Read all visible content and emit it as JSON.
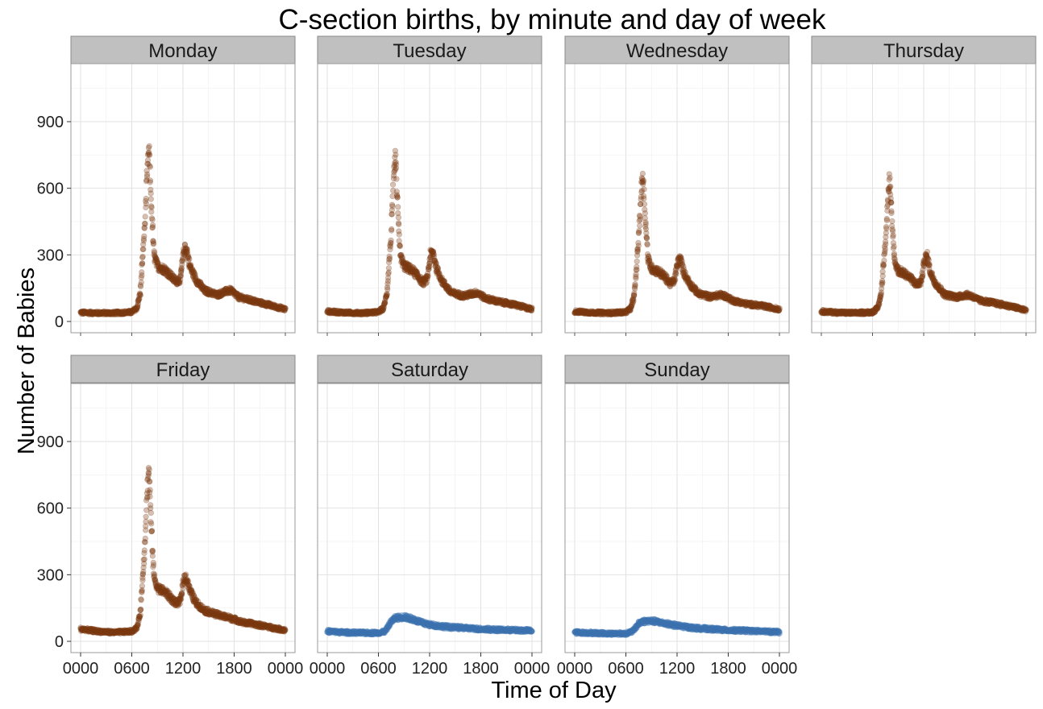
{
  "chart_data": {
    "type": "scatter",
    "title": "C-section births, by minute and day of week",
    "xlabel": "Time of Day",
    "ylabel": "Number of Babies",
    "x_ticks": [
      "0000",
      "0600",
      "1200",
      "1800",
      "0000"
    ],
    "x_tick_hours": [
      0,
      6,
      12,
      18,
      24
    ],
    "y_ticks": [
      0,
      300,
      600,
      900
    ],
    "xlim_hours": [
      0,
      24
    ],
    "ylim": [
      0,
      1200
    ],
    "grid": true,
    "colors": {
      "weekday": "#7B3A12",
      "weekend": "#3D74B0"
    },
    "panels": [
      {
        "name": "Monday",
        "color_group": "weekday",
        "curve": [
          [
            0,
            40
          ],
          [
            2,
            38
          ],
          [
            4,
            38
          ],
          [
            6,
            42
          ],
          [
            6.6,
            60
          ],
          [
            7,
            130
          ],
          [
            7.5,
            420
          ],
          [
            7.8,
            660
          ],
          [
            8.0,
            780
          ],
          [
            8.3,
            520
          ],
          [
            8.6,
            300
          ],
          [
            9,
            250
          ],
          [
            10,
            230
          ],
          [
            10.7,
            200
          ],
          [
            11.2,
            180
          ],
          [
            11.7,
            190
          ],
          [
            12.1,
            320
          ],
          [
            12.4,
            330
          ],
          [
            12.8,
            250
          ],
          [
            13.5,
            190
          ],
          [
            14.5,
            140
          ],
          [
            16,
            120
          ],
          [
            17,
            135
          ],
          [
            17.6,
            140
          ],
          [
            18.5,
            110
          ],
          [
            20,
            95
          ],
          [
            22,
            75
          ],
          [
            24,
            55
          ]
        ]
      },
      {
        "name": "Tuesday",
        "color_group": "weekday",
        "curve": [
          [
            0,
            45
          ],
          [
            2,
            40
          ],
          [
            4,
            38
          ],
          [
            6,
            42
          ],
          [
            6.6,
            60
          ],
          [
            7,
            130
          ],
          [
            7.5,
            400
          ],
          [
            7.8,
            640
          ],
          [
            8.0,
            740
          ],
          [
            8.3,
            480
          ],
          [
            8.6,
            290
          ],
          [
            9,
            250
          ],
          [
            10,
            230
          ],
          [
            10.7,
            200
          ],
          [
            11.2,
            175
          ],
          [
            11.7,
            190
          ],
          [
            12.1,
            300
          ],
          [
            12.4,
            310
          ],
          [
            12.8,
            240
          ],
          [
            13.5,
            180
          ],
          [
            14.5,
            130
          ],
          [
            16,
            115
          ],
          [
            17,
            125
          ],
          [
            17.6,
            130
          ],
          [
            18.5,
            105
          ],
          [
            20,
            90
          ],
          [
            22,
            75
          ],
          [
            24,
            55
          ]
        ]
      },
      {
        "name": "Wednesday",
        "color_group": "weekday",
        "curve": [
          [
            0,
            45
          ],
          [
            2,
            40
          ],
          [
            4,
            38
          ],
          [
            6,
            42
          ],
          [
            6.6,
            60
          ],
          [
            7,
            120
          ],
          [
            7.5,
            380
          ],
          [
            7.8,
            580
          ],
          [
            8.0,
            670
          ],
          [
            8.3,
            450
          ],
          [
            8.6,
            280
          ],
          [
            9,
            240
          ],
          [
            10,
            220
          ],
          [
            10.7,
            195
          ],
          [
            11.2,
            170
          ],
          [
            11.7,
            185
          ],
          [
            12.1,
            270
          ],
          [
            12.4,
            280
          ],
          [
            12.8,
            220
          ],
          [
            13.5,
            170
          ],
          [
            14.5,
            125
          ],
          [
            16,
            110
          ],
          [
            17,
            120
          ],
          [
            17.6,
            115
          ],
          [
            18.5,
            95
          ],
          [
            20,
            80
          ],
          [
            22,
            70
          ],
          [
            24,
            55
          ]
        ]
      },
      {
        "name": "Thursday",
        "color_group": "weekday",
        "curve": [
          [
            0,
            45
          ],
          [
            2,
            40
          ],
          [
            4,
            38
          ],
          [
            6,
            42
          ],
          [
            6.6,
            60
          ],
          [
            7,
            120
          ],
          [
            7.5,
            360
          ],
          [
            7.8,
            560
          ],
          [
            8.0,
            640
          ],
          [
            8.3,
            430
          ],
          [
            8.6,
            270
          ],
          [
            9,
            230
          ],
          [
            10,
            210
          ],
          [
            10.7,
            185
          ],
          [
            11.2,
            165
          ],
          [
            11.7,
            180
          ],
          [
            12.1,
            280
          ],
          [
            12.4,
            295
          ],
          [
            12.8,
            220
          ],
          [
            13.5,
            165
          ],
          [
            14.5,
            120
          ],
          [
            16,
            110
          ],
          [
            17,
            120
          ],
          [
            17.6,
            115
          ],
          [
            18.5,
            95
          ],
          [
            20,
            85
          ],
          [
            22,
            70
          ],
          [
            24,
            50
          ]
        ]
      },
      {
        "name": "Friday",
        "color_group": "weekday",
        "curve": [
          [
            0,
            55
          ],
          [
            2,
            45
          ],
          [
            4,
            40
          ],
          [
            6,
            45
          ],
          [
            6.6,
            60
          ],
          [
            7,
            130
          ],
          [
            7.5,
            420
          ],
          [
            7.8,
            680
          ],
          [
            8.0,
            780
          ],
          [
            8.3,
            500
          ],
          [
            8.6,
            290
          ],
          [
            9,
            240
          ],
          [
            10,
            220
          ],
          [
            10.7,
            190
          ],
          [
            11.2,
            170
          ],
          [
            11.7,
            180
          ],
          [
            12.1,
            280
          ],
          [
            12.4,
            290
          ],
          [
            12.8,
            230
          ],
          [
            13.5,
            175
          ],
          [
            14.5,
            140
          ],
          [
            16,
            120
          ],
          [
            17,
            110
          ],
          [
            18,
            100
          ],
          [
            19,
            85
          ],
          [
            20,
            80
          ],
          [
            22,
            65
          ],
          [
            24,
            50
          ]
        ]
      },
      {
        "name": "Saturday",
        "color_group": "weekend",
        "curve": [
          [
            0,
            45
          ],
          [
            2,
            40
          ],
          [
            4,
            38
          ],
          [
            6,
            38
          ],
          [
            6.8,
            45
          ],
          [
            7.5,
            90
          ],
          [
            8,
            105
          ],
          [
            9,
            110
          ],
          [
            10,
            100
          ],
          [
            11,
            85
          ],
          [
            12,
            75
          ],
          [
            14,
            65
          ],
          [
            16,
            60
          ],
          [
            18,
            55
          ],
          [
            20,
            52
          ],
          [
            22,
            50
          ],
          [
            24,
            48
          ]
        ]
      },
      {
        "name": "Sunday",
        "color_group": "weekend",
        "curve": [
          [
            0,
            40
          ],
          [
            2,
            38
          ],
          [
            4,
            35
          ],
          [
            6,
            35
          ],
          [
            6.8,
            45
          ],
          [
            7.5,
            80
          ],
          [
            8,
            90
          ],
          [
            9,
            92
          ],
          [
            10,
            85
          ],
          [
            11,
            78
          ],
          [
            12,
            70
          ],
          [
            14,
            60
          ],
          [
            16,
            55
          ],
          [
            18,
            50
          ],
          [
            20,
            48
          ],
          [
            22,
            45
          ],
          [
            24,
            42
          ]
        ]
      }
    ]
  }
}
